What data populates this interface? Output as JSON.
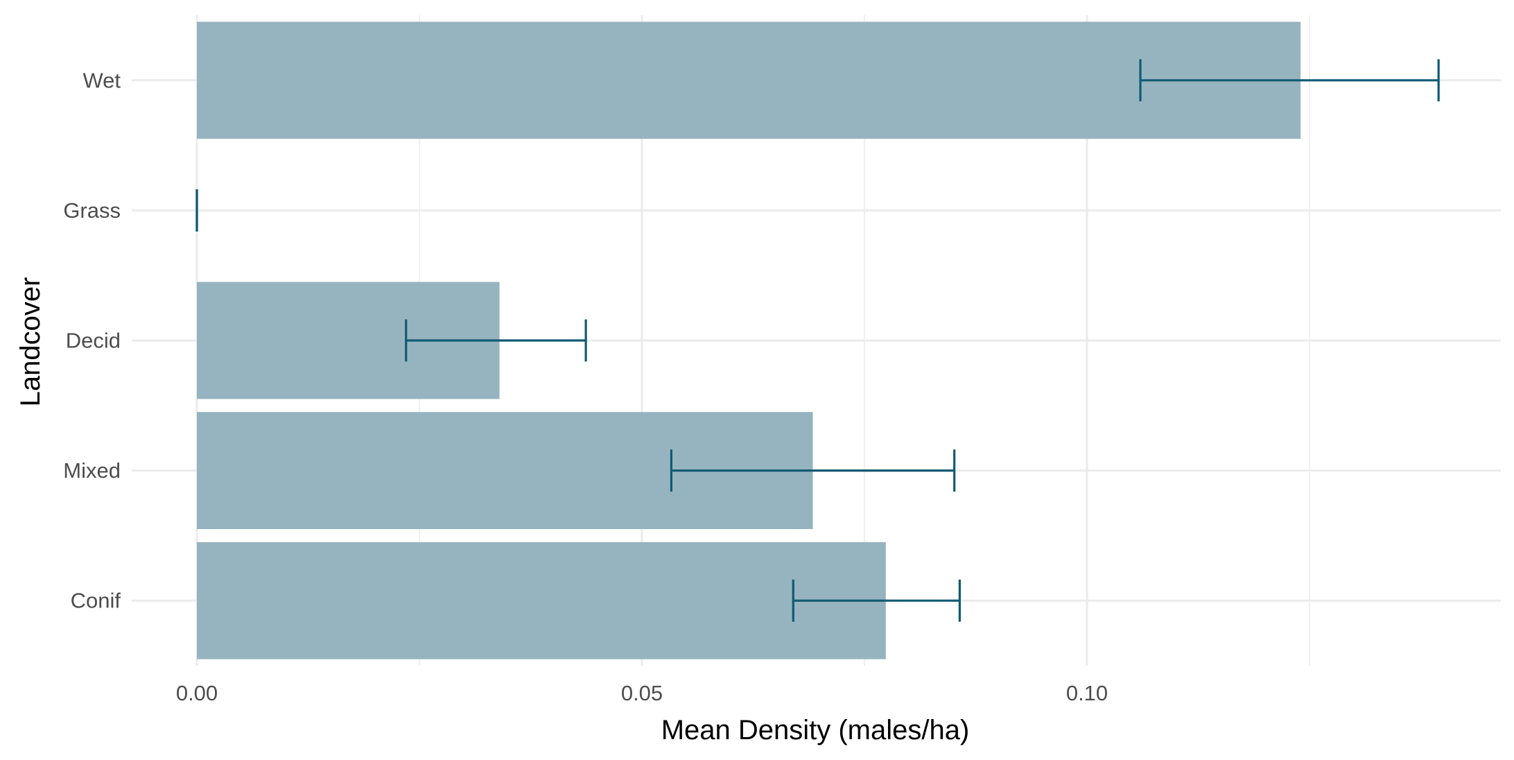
{
  "chart_data": {
    "type": "bar",
    "orientation": "horizontal",
    "xlabel": "Mean Density (males/ha)",
    "ylabel": "Landcover",
    "xlim": [
      -0.0068,
      0.14
    ],
    "x_ticks": [
      {
        "value": 0.0,
        "label": "0.00"
      },
      {
        "value": 0.05,
        "label": "0.05"
      },
      {
        "value": 0.1,
        "label": "0.10"
      }
    ],
    "x_minor_ticks": [
      0.025,
      0.075,
      0.125
    ],
    "categories": [
      "Wet",
      "Grass",
      "Decid",
      "Mixed",
      "Conif"
    ],
    "values": [
      0.124,
      0.0,
      0.034,
      0.0692,
      0.0774
    ],
    "error_low": [
      0.106,
      0.0,
      0.0235,
      0.0533,
      0.067
    ],
    "error_high": [
      0.1395,
      0.0,
      0.0437,
      0.0851,
      0.0857
    ],
    "grid": true,
    "legend": "none",
    "colors": {
      "bar": "#96b4bf",
      "error": "#105a73",
      "grid": "#ebebeb"
    }
  }
}
